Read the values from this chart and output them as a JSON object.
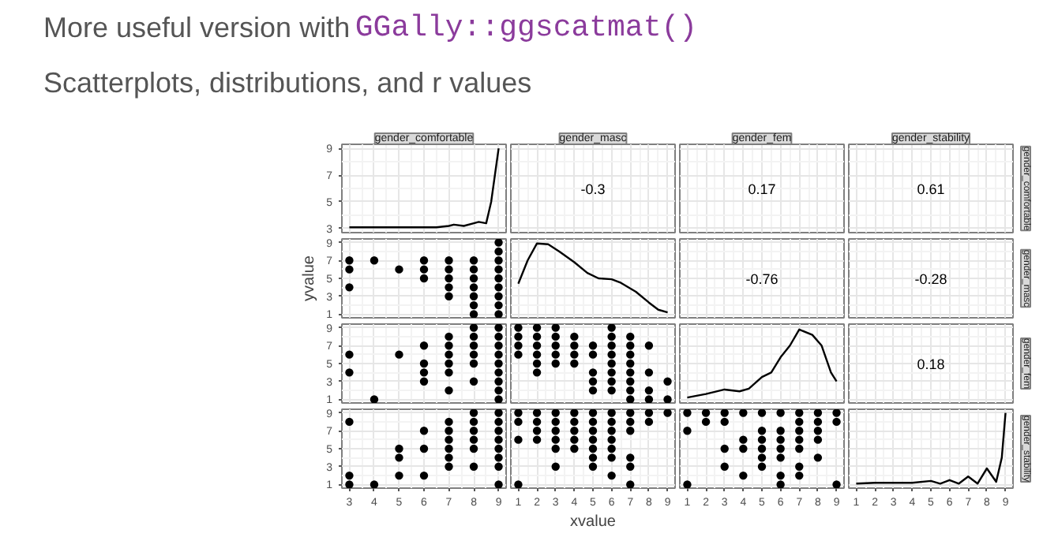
{
  "chart_data": [
    {
      "type": "other",
      "annotations": [
        "More useful version with",
        "GGally::ggscatmat()",
        "Scatterplots, distributions, and r values"
      ]
    },
    {
      "type": "line",
      "title": "gender_comfortable",
      "x": [
        3,
        4,
        5,
        6,
        6.5,
        7,
        7.2,
        7.6,
        8,
        8.2,
        8.5,
        8.7,
        8.85,
        9
      ],
      "values": [
        3.1,
        3.1,
        3.1,
        3.1,
        3.1,
        3.2,
        3.3,
        3.2,
        3.4,
        3.5,
        3.4,
        5,
        7,
        9
      ],
      "color": "#000000",
      "xlim": [
        2.7,
        9.3
      ],
      "ylim": [
        2.7,
        9.3
      ],
      "xticks": [
        3,
        4,
        5,
        6,
        7,
        8,
        9
      ],
      "yticks": [
        3,
        5,
        7,
        9
      ],
      "grid": true,
      "tick_labels": "y"
    },
    {
      "type": "other",
      "title": "gender_masc",
      "annotations": [
        "-0.3"
      ]
    },
    {
      "type": "other",
      "title": "gender_fem",
      "annotations": [
        "0.17"
      ]
    },
    {
      "type": "other",
      "title": "gender_stability",
      "y2label": "gender_comfortable",
      "annotations": [
        "0.61"
      ]
    },
    {
      "type": "scatter",
      "ylabel": "yvalue",
      "marker": "circle",
      "color": "#000000",
      "x": [
        3,
        3,
        3,
        4,
        5,
        6,
        6,
        6,
        7,
        7,
        7,
        7,
        7,
        8,
        8,
        8,
        8,
        8,
        8,
        8,
        9,
        9,
        9,
        9,
        9,
        9,
        9,
        9,
        9
      ],
      "values": [
        7,
        6,
        4,
        7,
        6,
        7,
        6,
        5,
        7,
        6,
        5,
        4,
        3,
        7,
        6,
        5,
        4,
        3,
        2,
        1,
        9,
        8,
        7,
        6,
        5,
        4,
        3,
        2,
        1
      ],
      "xlim": [
        2.7,
        9.3
      ],
      "ylim": [
        0.6,
        9.4
      ],
      "xticks": [
        3,
        4,
        5,
        6,
        7,
        8,
        9
      ],
      "yticks": [
        1,
        3,
        5,
        7,
        9
      ],
      "grid": true,
      "tick_labels": "y"
    },
    {
      "type": "line",
      "x": [
        1,
        1.5,
        2,
        2.6,
        3.2,
        4,
        4.7,
        5.3,
        6,
        6.5,
        7.3,
        8,
        8.5,
        9
      ],
      "values": [
        4.4,
        7,
        8.9,
        8.8,
        8,
        6.8,
        5.6,
        5,
        4.9,
        4.5,
        3.5,
        2.3,
        1.5,
        1.2
      ],
      "color": "#000000",
      "xlim": [
        0.6,
        9.4
      ],
      "ylim": [
        0.6,
        9.4
      ],
      "xticks": [
        1,
        2,
        3,
        4,
        5,
        6,
        7,
        8,
        9
      ],
      "yticks": [
        1,
        3,
        5,
        7,
        9
      ],
      "grid": true,
      "tick_labels": false
    },
    {
      "type": "other",
      "annotations": [
        "-0.76"
      ]
    },
    {
      "type": "other",
      "y2label": "gender_masc",
      "annotations": [
        "-0.28"
      ]
    },
    {
      "type": "scatter",
      "marker": "circle",
      "color": "#000000",
      "x": [
        3,
        3,
        4,
        5,
        6,
        6,
        6,
        6,
        7,
        7,
        7,
        7,
        7,
        7,
        8,
        8,
        8,
        8,
        8,
        8,
        9,
        9,
        9,
        9,
        9,
        9,
        9,
        9,
        9
      ],
      "values": [
        6,
        4,
        1,
        6,
        7,
        5,
        4,
        3,
        8,
        7,
        6,
        5,
        4,
        2,
        9,
        8,
        7,
        6,
        5,
        3,
        9,
        8,
        7,
        6,
        5,
        4,
        3,
        2,
        1
      ],
      "xlim": [
        2.7,
        9.3
      ],
      "ylim": [
        0.6,
        9.4
      ],
      "xticks": [
        3,
        4,
        5,
        6,
        7,
        8,
        9
      ],
      "yticks": [
        1,
        3,
        5,
        7,
        9
      ],
      "grid": true,
      "tick_labels": "y"
    },
    {
      "type": "scatter",
      "marker": "circle",
      "color": "#000000",
      "x": [
        1,
        1,
        1,
        1,
        2,
        2,
        2,
        2,
        2,
        2,
        3,
        3,
        3,
        3,
        3,
        4,
        4,
        4,
        4,
        5,
        5,
        5,
        5,
        5,
        6,
        6,
        6,
        6,
        6,
        6,
        6,
        6,
        7,
        7,
        7,
        7,
        7,
        7,
        7,
        7,
        8,
        8,
        8,
        8,
        9,
        9
      ],
      "values": [
        9,
        8,
        7,
        6,
        9,
        8,
        7,
        6,
        5,
        4,
        9,
        8,
        7,
        6,
        5,
        8,
        7,
        6,
        5,
        7,
        6,
        4,
        3,
        2,
        9,
        8,
        7,
        6,
        5,
        4,
        3,
        2,
        8,
        7,
        6,
        5,
        4,
        3,
        2,
        1,
        7,
        4,
        2,
        1,
        3,
        1
      ],
      "xlim": [
        0.6,
        9.4
      ],
      "ylim": [
        0.6,
        9.4
      ],
      "xticks": [
        1,
        2,
        3,
        4,
        5,
        6,
        7,
        8,
        9
      ],
      "yticks": [
        1,
        3,
        5,
        7,
        9
      ],
      "grid": true,
      "tick_labels": false
    },
    {
      "type": "line",
      "x": [
        1,
        2,
        3,
        3.8,
        4.3,
        5,
        5.5,
        6,
        6.5,
        7,
        7.7,
        8.2,
        8.7,
        9
      ],
      "values": [
        1.2,
        1.6,
        2.1,
        1.9,
        2.2,
        3.5,
        4,
        5.7,
        7,
        8.8,
        8.2,
        7,
        4,
        3
      ],
      "color": "#000000",
      "xlim": [
        0.6,
        9.4
      ],
      "ylim": [
        0.6,
        9.4
      ],
      "xticks": [
        1,
        2,
        3,
        4,
        5,
        6,
        7,
        8,
        9
      ],
      "yticks": [
        1,
        3,
        5,
        7,
        9
      ],
      "grid": true,
      "tick_labels": false
    },
    {
      "type": "other",
      "y2label": "gender_fem",
      "annotations": [
        "0.18"
      ]
    },
    {
      "type": "scatter",
      "marker": "circle",
      "color": "#000000",
      "x": [
        3,
        3,
        3,
        4,
        5,
        5,
        5,
        6,
        6,
        6,
        7,
        7,
        7,
        7,
        7,
        7,
        8,
        8,
        8,
        8,
        8,
        8,
        9,
        9,
        9,
        9,
        9,
        9,
        9,
        9
      ],
      "values": [
        8,
        2,
        1,
        1,
        5,
        4,
        2,
        7,
        5,
        2,
        8,
        7,
        6,
        5,
        4,
        3,
        9,
        8,
        7,
        6,
        5,
        3,
        9,
        8,
        7,
        6,
        5,
        4,
        3,
        1
      ],
      "xlim": [
        2.7,
        9.3
      ],
      "ylim": [
        0.6,
        9.4
      ],
      "xticks": [
        3,
        4,
        5,
        6,
        7,
        8,
        9
      ],
      "yticks": [
        1,
        3,
        5,
        7,
        9
      ],
      "grid": true
    },
    {
      "type": "scatter",
      "xlabel": "xvalue",
      "marker": "circle",
      "color": "#000000",
      "x": [
        1,
        1,
        1,
        1,
        2,
        2,
        2,
        2,
        3,
        3,
        3,
        3,
        3,
        3,
        4,
        4,
        4,
        4,
        4,
        5,
        5,
        5,
        5,
        5,
        5,
        5,
        6,
        6,
        6,
        6,
        6,
        6,
        6,
        7,
        7,
        7,
        7,
        7,
        7,
        8,
        8,
        9
      ],
      "values": [
        9,
        8,
        6,
        1,
        9,
        8,
        7,
        6,
        9,
        8,
        7,
        6,
        5,
        3,
        9,
        8,
        7,
        6,
        5,
        9,
        8,
        7,
        6,
        5,
        4,
        3,
        9,
        8,
        7,
        6,
        5,
        4,
        2,
        9,
        8,
        7,
        4,
        3,
        1,
        9,
        8,
        9
      ],
      "xlim": [
        0.6,
        9.4
      ],
      "ylim": [
        0.6,
        9.4
      ],
      "xticks": [
        1,
        2,
        3,
        4,
        5,
        6,
        7,
        8,
        9
      ],
      "yticks": [
        1,
        3,
        5,
        7,
        9
      ],
      "grid": true,
      "tick_labels": "x"
    },
    {
      "type": "scatter",
      "marker": "circle",
      "color": "#000000",
      "x": [
        1,
        1,
        1,
        2,
        2,
        3,
        3,
        3,
        3,
        4,
        4,
        4,
        4,
        5,
        5,
        5,
        5,
        5,
        5,
        6,
        6,
        6,
        6,
        6,
        6,
        6,
        7,
        7,
        7,
        7,
        7,
        7,
        7,
        8,
        8,
        8,
        8,
        8,
        9,
        9,
        9
      ],
      "values": [
        9,
        7,
        1,
        9,
        8,
        9,
        8,
        5,
        3,
        9,
        6,
        5,
        2,
        9,
        7,
        6,
        5,
        4,
        3,
        9,
        7,
        6,
        5,
        4,
        2,
        1,
        9,
        8,
        7,
        6,
        5,
        3,
        2,
        9,
        8,
        7,
        6,
        4,
        9,
        8,
        1
      ],
      "xlim": [
        0.6,
        9.4
      ],
      "ylim": [
        0.6,
        9.4
      ],
      "xticks": [
        1,
        2,
        3,
        4,
        5,
        6,
        7,
        8,
        9
      ],
      "yticks": [
        1,
        3,
        5,
        7,
        9
      ],
      "grid": true,
      "tick_labels": "x"
    },
    {
      "type": "line",
      "y2label": "gender_stability",
      "x": [
        1,
        2,
        3,
        4,
        5,
        5.5,
        6,
        6.5,
        7,
        7.5,
        8,
        8.5,
        8.8,
        9
      ],
      "values": [
        1.1,
        1.2,
        1.2,
        1.2,
        1.4,
        1.1,
        1.5,
        1.1,
        1.9,
        1.1,
        2.8,
        1.3,
        4,
        9
      ],
      "color": "#000000",
      "xlim": [
        0.6,
        9.4
      ],
      "ylim": [
        0.6,
        9.4
      ],
      "xticks": [
        1,
        2,
        3,
        4,
        5,
        6,
        7,
        8,
        9
      ],
      "yticks": [
        1,
        3,
        5,
        7,
        9
      ],
      "grid": true,
      "tick_labels": "x"
    }
  ]
}
